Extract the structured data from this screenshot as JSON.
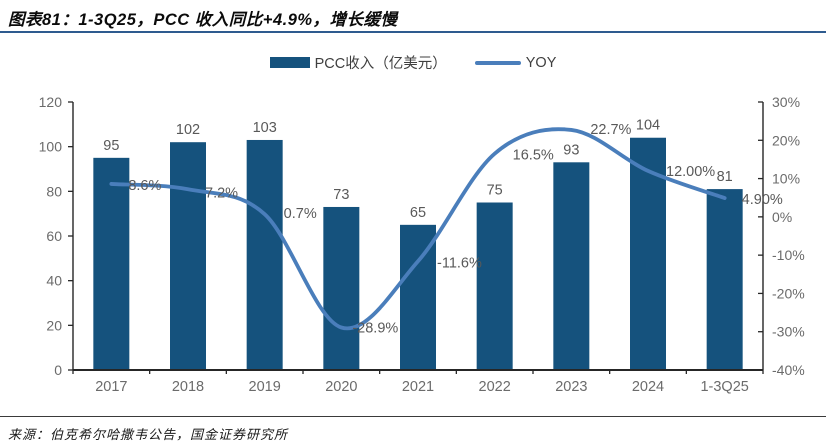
{
  "title": "图表81：1-3Q25，PCC 收入同比+4.9%，增长缓慢",
  "source": "来源：伯克希尔哈撒韦公告，国金证券研究所",
  "legend": {
    "bar_label": "PCC收入（亿美元）",
    "line_label": "YOY"
  },
  "colors": {
    "bar": "#15527D",
    "line": "#4A7EBB",
    "title_rule": "#2E5B8F",
    "axis_line": "#262626",
    "label": "#595959",
    "axis_label": "#6b6b6b"
  },
  "chart_data": {
    "type": "bar+line combo",
    "title": "1-3Q25，PCC 收入同比+4.9%，增长缓慢",
    "categories": [
      "2017",
      "2018",
      "2019",
      "2020",
      "2021",
      "2022",
      "2023",
      "2024",
      "1-3Q25"
    ],
    "series": [
      {
        "name": "PCC收入（亿美元）",
        "type": "bar",
        "axis": "left",
        "values": [
          95,
          102,
          103,
          73,
          65,
          75,
          93,
          104,
          81
        ],
        "labels": [
          "95",
          "102",
          "103",
          "73",
          "65",
          "75",
          "93",
          "104",
          "81"
        ]
      },
      {
        "name": "YOY",
        "type": "line",
        "axis": "right",
        "values": [
          8.6,
          7.2,
          0.7,
          -28.9,
          -11.6,
          16.5,
          22.7,
          12.0,
          4.9
        ],
        "labels": [
          "8.6%",
          "7.2%",
          "0.7%",
          "-28.9%",
          "-11.6%",
          "16.5%",
          "22.7%",
          "12.00%",
          "4.90%"
        ]
      }
    ],
    "left_axis": {
      "min": 0,
      "max": 120,
      "step": 20,
      "ticks": [
        "0",
        "20",
        "40",
        "60",
        "80",
        "100",
        "120"
      ]
    },
    "right_axis": {
      "min": -40,
      "max": 30,
      "step": 10,
      "ticks": [
        "-40%",
        "-30%",
        "-20%",
        "-10%",
        "0%",
        "10%",
        "20%",
        "30%"
      ]
    },
    "grid": false,
    "legend_position": "top-center",
    "line_smooth": true
  }
}
